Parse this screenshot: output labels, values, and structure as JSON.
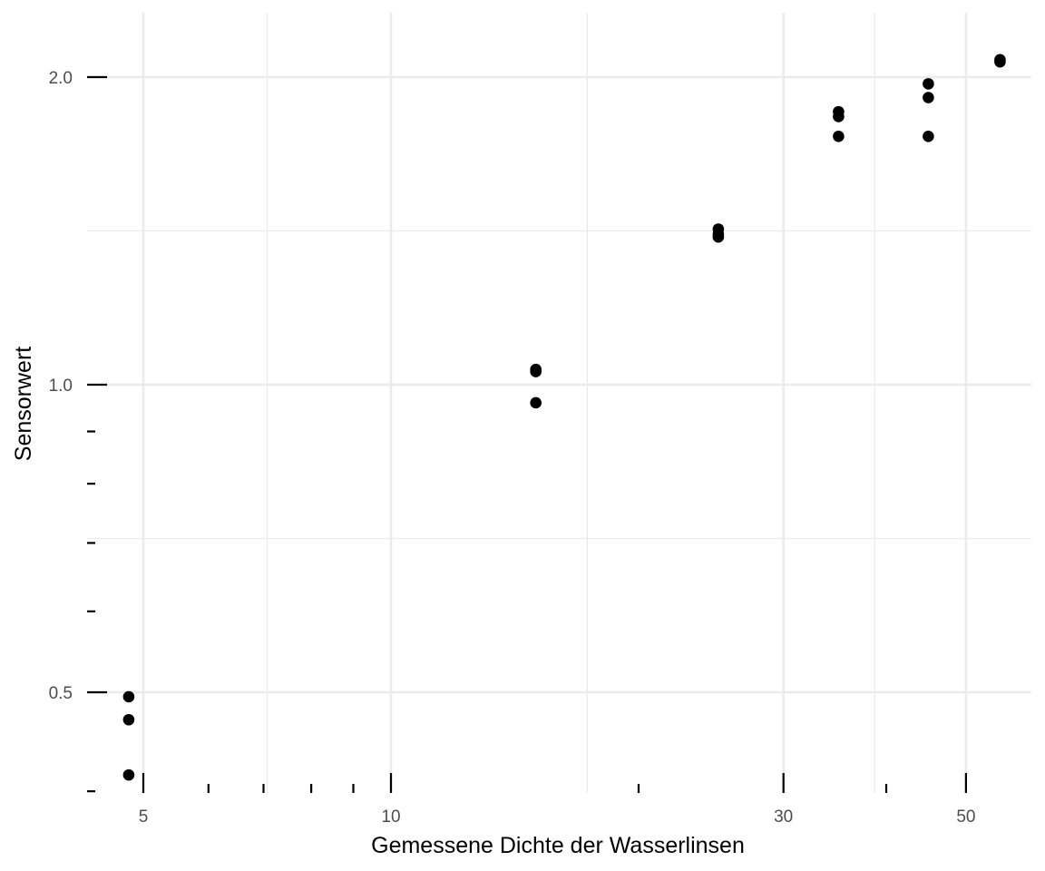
{
  "chart_data": {
    "type": "scatter",
    "xlabel": "Gemessene Dichte der Wasserlinsen",
    "ylabel": "Sensorwert",
    "x_scale": "log10",
    "y_scale": "log10",
    "xlim": [
      4.6,
      57
    ],
    "ylim": [
      0.43,
      2.2
    ],
    "x_ticks": [
      5,
      10,
      30,
      50
    ],
    "x_tick_labels": [
      "5",
      "10",
      "30",
      "50"
    ],
    "y_ticks": [
      0.5,
      1.0,
      2.0
    ],
    "y_tick_labels": [
      "0.5",
      "1.0",
      "2.0"
    ],
    "grid": true,
    "legend": "none",
    "colors": {
      "point": "#000000",
      "grid": "#ebebeb"
    },
    "points": [
      {
        "x": 4.8,
        "y": 0.495
      },
      {
        "x": 4.8,
        "y": 0.47
      },
      {
        "x": 4.8,
        "y": 0.415
      },
      {
        "x": 15,
        "y": 1.035
      },
      {
        "x": 15,
        "y": 1.03
      },
      {
        "x": 15,
        "y": 0.96
      },
      {
        "x": 25,
        "y": 1.42
      },
      {
        "x": 25,
        "y": 1.405
      },
      {
        "x": 25,
        "y": 1.395
      },
      {
        "x": 35,
        "y": 1.85
      },
      {
        "x": 35,
        "y": 1.83
      },
      {
        "x": 35,
        "y": 1.75
      },
      {
        "x": 45,
        "y": 1.97
      },
      {
        "x": 45,
        "y": 1.91
      },
      {
        "x": 45,
        "y": 1.75
      },
      {
        "x": 55,
        "y": 2.08
      },
      {
        "x": 55,
        "y": 2.07
      }
    ]
  }
}
